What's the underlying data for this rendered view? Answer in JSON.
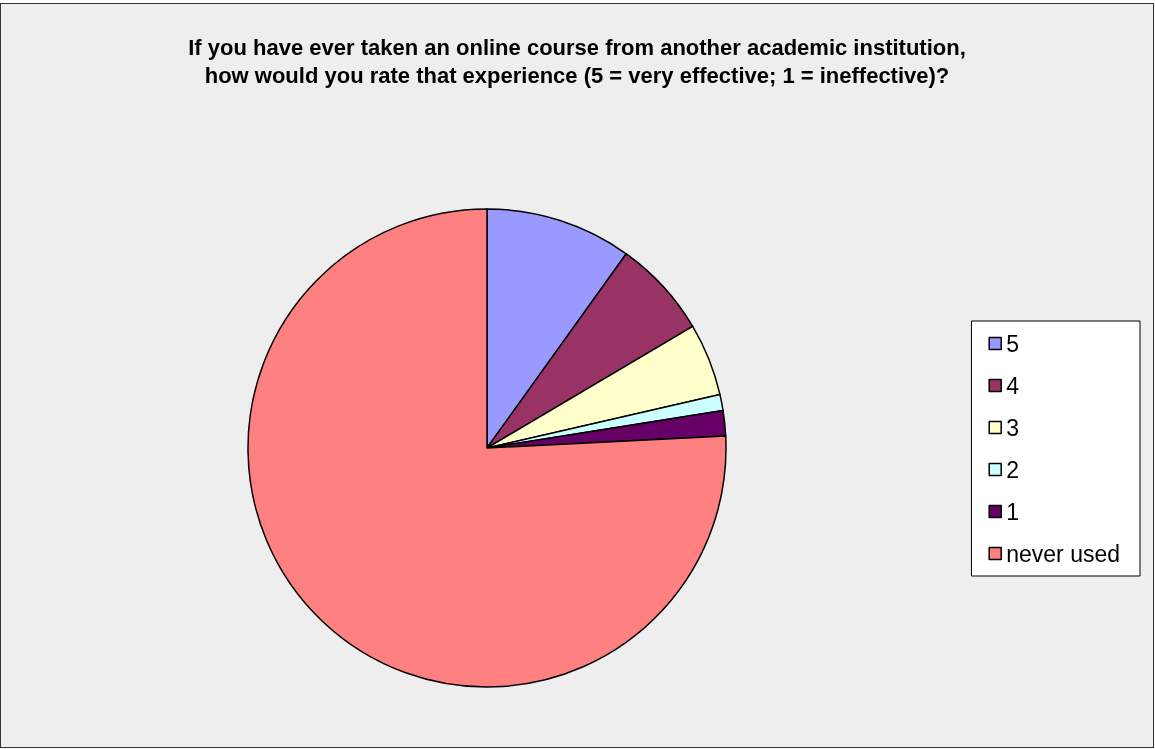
{
  "chart_data": {
    "type": "pie",
    "title": "If you have ever taken an online course from another academic institution,\nhow would you rate that experience (5 = very effective; 1 = ineffective)?",
    "categories": [
      "5",
      "4",
      "3",
      "2",
      "1",
      "never used"
    ],
    "values": [
      9.9,
      6.6,
      4.9,
      1.1,
      1.7,
      75.8
    ],
    "colors": [
      "#9999ff",
      "#993366",
      "#ffffcc",
      "#ccffff",
      "#660066",
      "#ff8080"
    ],
    "legend": "right"
  }
}
